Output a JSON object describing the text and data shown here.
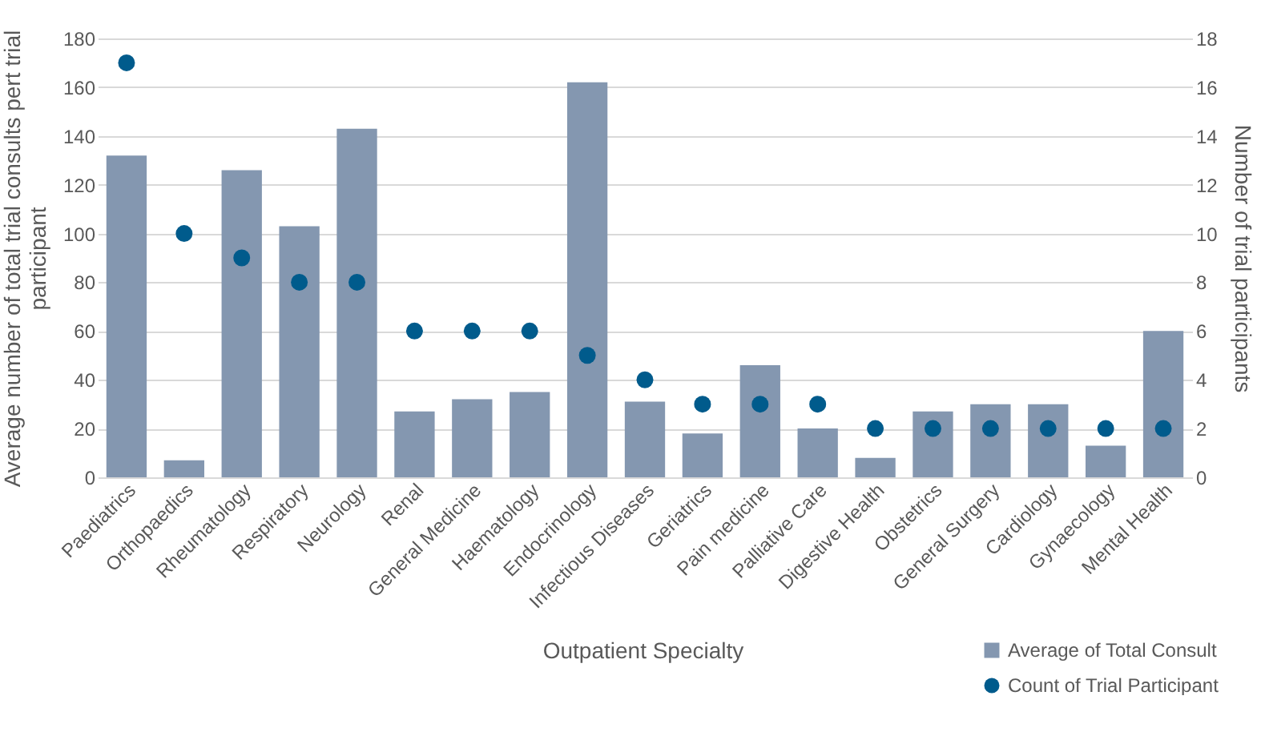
{
  "chart_data": {
    "type": "bar",
    "xlabel": "Outpatient Specialty",
    "ylabel": "Average number of total trial consults pert trial participant",
    "y2label": "Number of trial participants",
    "categories": [
      "Paediatrics",
      "Orthopaedics",
      "Rheumatology",
      "Respiratory",
      "Neurology",
      "Renal",
      "General Medicine",
      "Haematology",
      "Endocrinology",
      "Infectious Diseases",
      "Geriatrics",
      "Pain medicine",
      "Palliative Care",
      "Digestive Health",
      "Obstetrics",
      "General Surgery",
      "Cardiology",
      "Gynaecology",
      "Mental Health"
    ],
    "series": [
      {
        "name": "Average of Total Consult",
        "color": "#8497b0",
        "values": [
          132,
          7,
          126,
          103,
          143,
          27,
          32,
          35,
          162,
          31,
          18,
          46,
          20,
          8,
          27,
          30,
          30,
          13,
          60
        ]
      },
      {
        "name": "Count of Trial Participant",
        "type": "scatter",
        "axis": "y2",
        "color": "#005b8c",
        "values": [
          17,
          10,
          9,
          8,
          8,
          6,
          6,
          6,
          5,
          4,
          3,
          3,
          3,
          2,
          2,
          2,
          2,
          2,
          2
        ]
      }
    ],
    "ylim": [
      0,
      180
    ],
    "yticks": [
      0,
      20,
      40,
      60,
      80,
      100,
      120,
      140,
      160,
      180
    ],
    "y2lim": [
      0,
      18
    ],
    "y2ticks": [
      0,
      2,
      4,
      6,
      8,
      10,
      12,
      14,
      16,
      18
    ],
    "grid": "y",
    "legend": "bottom right",
    "marker": "circle"
  }
}
